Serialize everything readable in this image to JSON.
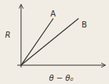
{
  "chart_data": {
    "type": "line",
    "title": "",
    "xlabel": "θ − θ₀",
    "ylabel": "R",
    "series": [
      {
        "name": "A",
        "color": "#333333",
        "x": [
          0,
          0.42
        ],
        "values": [
          0,
          1.0
        ]
      },
      {
        "name": "B",
        "color": "#333333",
        "x": [
          0,
          0.75
        ],
        "values": [
          0,
          1.0
        ]
      }
    ],
    "xlim": [
      -0.05,
      1.1
    ],
    "ylim": [
      -0.05,
      1.3
    ],
    "tick_labels": false
  }
}
